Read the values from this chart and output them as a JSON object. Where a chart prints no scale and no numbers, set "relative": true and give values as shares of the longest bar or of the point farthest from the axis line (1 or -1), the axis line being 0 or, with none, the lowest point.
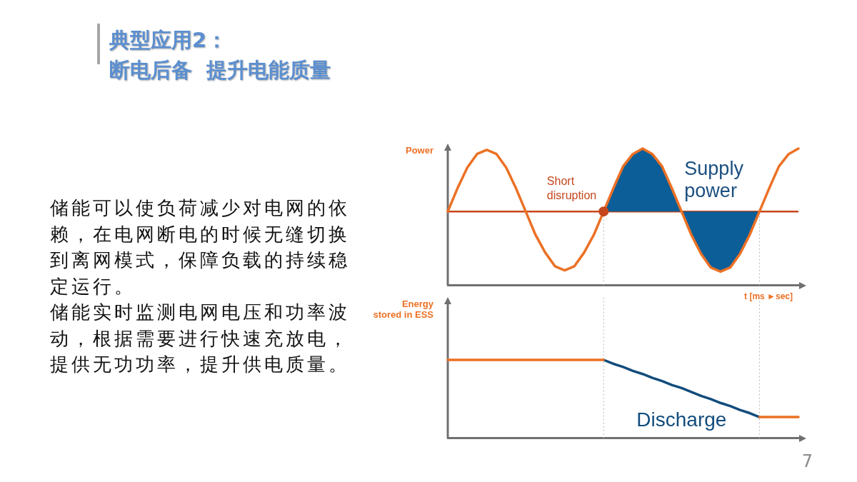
{
  "chart_data": [
    {
      "type": "other",
      "title": "典型应用2：",
      "subtitle": "断电后备  提升电能质量",
      "annotations": [
        "储能可以使负荷减少对电网的依赖，在电网断电的时候无缝切换到离网模式，保障负载的持续稳定运行。",
        "储能实时监测电网电压和功率波动，根据需要进行快速充放电，提供无功功率，提升供电质量。",
        "7"
      ]
    },
    {
      "type": "line",
      "ylabel": "Power",
      "xlabel": "t [ms ►sec]",
      "relative": true,
      "categories": [
        null,
        null,
        null,
        null,
        null,
        null,
        null,
        null,
        null,
        null,
        null,
        null,
        null,
        null,
        null,
        null,
        null,
        null,
        null,
        null,
        null,
        null,
        null,
        null,
        null,
        null,
        null,
        null,
        null,
        null,
        null,
        null,
        null,
        null,
        null,
        null,
        null
      ],
      "series": [
        {
          "type": "line",
          "color": "#ec7125",
          "values": [
            0.54,
            0.71,
            0.86,
            0.96,
            0.99,
            0.96,
            0.86,
            0.71,
            0.54,
            0.37,
            0.24,
            0.14,
            0.11,
            0.14,
            0.24,
            0.37,
            0.54,
            0.71,
            0.87,
            0.96,
            1,
            0.96,
            0.87,
            0.71,
            0.54,
            0.37,
            0.23,
            0.13,
            0.1,
            0.13,
            0.23,
            0.37,
            0.54,
            0.71,
            0.87,
            0.96,
            1
          ]
        },
        {
          "type": "area",
          "name": "Supply power",
          "color": "#0b5e98",
          "values": [
            null,
            null,
            null,
            null,
            null,
            null,
            null,
            null,
            null,
            null,
            null,
            null,
            null,
            null,
            null,
            null,
            0.54,
            0.71,
            0.87,
            0.96,
            1,
            0.96,
            0.87,
            0.71,
            0.54,
            0.37,
            0.23,
            0.13,
            0.1,
            0.13,
            0.23,
            0.37,
            0.54,
            null,
            null,
            null,
            null
          ]
        },
        {
          "type": "line",
          "name": "Short disruption",
          "color": "#c3461c",
          "marker": "circle",
          "values": [
            null,
            null,
            null,
            null,
            null,
            null,
            null,
            null,
            null,
            null,
            null,
            null,
            null,
            null,
            null,
            null,
            0.54,
            null,
            null,
            null,
            null,
            null,
            null,
            null,
            null,
            null,
            null,
            null,
            null,
            null,
            null,
            null,
            null,
            null,
            null,
            null,
            null
          ]
        }
      ],
      "ref_lines": [
        {
          "axis": "y",
          "value": 0.54,
          "color": "#c9471c"
        }
      ]
    },
    {
      "type": "line",
      "ylabel": "Energy\nstored in ESS",
      "relative": true,
      "categories": [
        null,
        null,
        null,
        null,
        null,
        null,
        null,
        null,
        null,
        null,
        null,
        null,
        null,
        null,
        null,
        null,
        null,
        null,
        null,
        null,
        null,
        null,
        null,
        null,
        null,
        null,
        null,
        null,
        null,
        null,
        null,
        null,
        null,
        null,
        null,
        null,
        null
      ],
      "series": [
        {
          "type": "line",
          "color": "#ec7125",
          "values": [
            1,
            1,
            1,
            1,
            1,
            1,
            1,
            1,
            1,
            1,
            1,
            1,
            1,
            1,
            1,
            1,
            1,
            null,
            null,
            null,
            null,
            null,
            null,
            null,
            null,
            null,
            null,
            null,
            null,
            null,
            null,
            null,
            0.27,
            0.27,
            0.27,
            0.27,
            0.27
          ]
        },
        {
          "type": "line",
          "name": "Discharge",
          "color": "#124c7c",
          "values": [
            null,
            null,
            null,
            null,
            null,
            null,
            null,
            null,
            null,
            null,
            null,
            null,
            null,
            null,
            null,
            null,
            1,
            0.95,
            0.91,
            0.86,
            0.82,
            0.77,
            0.73,
            0.68,
            0.64,
            0.59,
            0.54,
            0.5,
            0.45,
            0.41,
            0.36,
            0.32,
            0.27,
            null,
            null,
            null,
            null
          ]
        }
      ]
    }
  ]
}
